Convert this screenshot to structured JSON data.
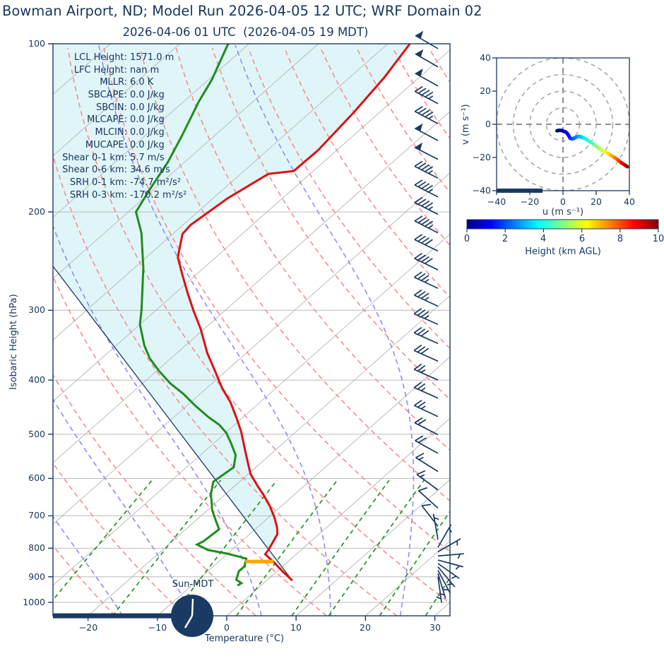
{
  "title": "Bowman Airport, ND; Model Run 2026-04-05 12 UTC; WRF Domain 02",
  "subtitle": "2026-04-06 01 UTC  (2026-04-05 19 MDT)",
  "colors": {
    "text_navy": "#16365c",
    "frame_navy": "#1b3a63",
    "temperature_red": "#dd1111",
    "dewpoint_green": "#1f8c1f",
    "parcel_navy": "#1f3864",
    "cape_shade_cyan": "#e0f5f8",
    "marker_orange": "#ffa500",
    "isotherm_gray": "#b5b5b5",
    "grid_gray": "#bbbbbb",
    "dry_adiabat_red": "#f29090",
    "moist_adiabat_blue": "#8d8df0",
    "mixing_line_green": "#2e962e",
    "hodo_ring_gray": "#a3a3a3"
  },
  "skewt": {
    "ylabel": "Isobaric Height (hPa)",
    "xlabel": "Temperature (°C)",
    "pressure_ticks": [
      100,
      200,
      300,
      400,
      500,
      600,
      700,
      800,
      900,
      1000
    ],
    "temp_ticks": [
      -20,
      -10,
      0,
      10,
      20,
      30
    ],
    "sun_label": "Sun-MDT",
    "info": [
      {
        "label": "LCL Height:",
        "value": "1571.0 m"
      },
      {
        "label": "LFC Height:",
        "value": "nan m"
      },
      {
        "label": "MLLR:",
        "value": "6.0 K"
      },
      {
        "label": "SBCAPE:",
        "value": "0.0 J/kg"
      },
      {
        "label": "SBCIN:",
        "value": "0.0 J/kg"
      },
      {
        "label": "MLCAPE:",
        "value": "0.0 J/kg"
      },
      {
        "label": "MLCIN:",
        "value": "0.0 J/kg"
      },
      {
        "label": "MUCAPE:",
        "value": "0.0 J/kg"
      },
      {
        "label": "Shear 0-1 km:",
        "value": "5.7 m/s"
      },
      {
        "label": "Shear 0-6 km:",
        "value": "34.6 m/s"
      },
      {
        "label": "SRH 0-1 km:",
        "value": "-74.7 m²/s²"
      },
      {
        "label": "SRH 0-3 km:",
        "value": "-170.2 m²/s²"
      }
    ]
  },
  "hodograph": {
    "xlabel": "u (m s⁻¹)",
    "ylabel": "v (m s⁻¹)",
    "u_ticks": [
      -40,
      -20,
      0,
      20,
      40
    ],
    "v_ticks": [
      40,
      20,
      0,
      -20,
      -40
    ],
    "ring_radii": [
      10,
      20,
      30,
      40
    ]
  },
  "colorbar": {
    "label": "Height (km AGL)",
    "ticks": [
      0,
      2,
      4,
      6,
      8,
      10
    ],
    "min": 0,
    "max": 10
  },
  "chart_data": {
    "type": "skewt-logp sounding",
    "pressure_range_hpa": [
      100,
      1050
    ],
    "temperature_axis_c": [
      -25,
      32
    ],
    "temperature_profile_p_t": [
      [
        100,
        -66.8
      ],
      [
        115,
        -65.0
      ],
      [
        133,
        -63.7
      ],
      [
        155,
        -62.7
      ],
      [
        169,
        -62.8
      ],
      [
        171,
        -66.0
      ],
      [
        189,
        -67.9
      ],
      [
        211,
        -68.9
      ],
      [
        219,
        -68.6
      ],
      [
        241,
        -65.5
      ],
      [
        259,
        -62.0
      ],
      [
        279,
        -58.3
      ],
      [
        300,
        -54.6
      ],
      [
        324,
        -50.5
      ],
      [
        358,
        -45.6
      ],
      [
        388,
        -41.2
      ],
      [
        414,
        -37.7
      ],
      [
        438,
        -34.3
      ],
      [
        467,
        -30.9
      ],
      [
        495,
        -27.9
      ],
      [
        530,
        -24.7
      ],
      [
        566,
        -21.6
      ],
      [
        590,
        -19.6
      ],
      [
        621,
        -16.5
      ],
      [
        640,
        -14.6
      ],
      [
        672,
        -11.7
      ],
      [
        704,
        -9.2
      ],
      [
        735,
        -7.1
      ],
      [
        755,
        -6.0
      ],
      [
        802,
        -4.8
      ],
      [
        820,
        -4.5
      ],
      [
        847,
        -2.0
      ],
      [
        880,
        0.8
      ],
      [
        914,
        3.7
      ]
    ],
    "dewpoint_profile_p_t": [
      [
        100,
        -93.0
      ],
      [
        116,
        -89.5
      ],
      [
        127,
        -87.8
      ],
      [
        146,
        -84.7
      ],
      [
        163,
        -82.4
      ],
      [
        182,
        -80.6
      ],
      [
        200,
        -78.9
      ],
      [
        218,
        -74.7
      ],
      [
        252,
        -68.7
      ],
      [
        299,
        -62.2
      ],
      [
        318,
        -60.0
      ],
      [
        347,
        -55.9
      ],
      [
        366,
        -53.0
      ],
      [
        385,
        -49.7
      ],
      [
        405,
        -46.1
      ],
      [
        423,
        -42.5
      ],
      [
        445,
        -38.7
      ],
      [
        466,
        -35.0
      ],
      [
        481,
        -32.2
      ],
      [
        497,
        -29.9
      ],
      [
        519,
        -27.5
      ],
      [
        545,
        -24.9
      ],
      [
        573,
        -23.2
      ],
      [
        608,
        -23.8
      ],
      [
        640,
        -22.1
      ],
      [
        684,
        -19.3
      ],
      [
        718,
        -16.8
      ],
      [
        740,
        -15.2
      ],
      [
        777,
        -15.5
      ],
      [
        788,
        -15.9
      ],
      [
        806,
        -13.4
      ],
      [
        818,
        -10.1
      ],
      [
        830,
        -7.5
      ],
      [
        835,
        -6.5
      ],
      [
        862,
        -5.5
      ],
      [
        880,
        -5.5
      ],
      [
        911,
        -4.5
      ],
      [
        924,
        -3.2
      ],
      [
        933,
        -3.4
      ]
    ],
    "parcel_path_p_t": [
      [
        250,
        -82.0
      ],
      [
        914,
        3.7
      ]
    ],
    "lcl_marker": {
      "pressure_hpa": 845,
      "t_left_c": -6.2,
      "t_right_c": -2.1,
      "color": "orange"
    },
    "winds_p_speedms_dirdeg": [
      [
        102,
        52,
        300
      ],
      [
        110,
        50,
        300
      ],
      [
        119,
        48,
        299
      ],
      [
        128,
        47,
        298
      ],
      [
        139,
        46,
        298
      ],
      [
        149,
        50,
        298
      ],
      [
        161,
        48,
        297
      ],
      [
        174,
        46,
        297
      ],
      [
        188,
        45,
        297
      ],
      [
        202,
        44,
        297
      ],
      [
        218,
        43,
        297
      ],
      [
        235,
        41,
        296
      ],
      [
        254,
        39,
        296
      ],
      [
        274,
        37,
        295
      ],
      [
        295,
        35,
        295
      ],
      [
        318,
        33,
        294
      ],
      [
        344,
        31,
        294
      ],
      [
        370,
        29,
        294
      ],
      [
        400,
        27,
        294
      ],
      [
        431,
        25,
        294
      ],
      [
        465,
        23,
        295
      ],
      [
        501,
        21,
        297
      ],
      [
        541,
        18,
        299
      ],
      [
        583,
        16,
        302
      ],
      [
        629,
        13,
        306
      ],
      [
        678,
        11,
        312
      ],
      [
        731,
        9,
        322
      ],
      [
        772,
        7,
        350
      ],
      [
        797,
        6,
        30
      ],
      [
        812,
        5,
        60
      ],
      [
        826,
        5,
        85
      ],
      [
        840,
        5,
        105
      ],
      [
        852,
        5,
        125
      ],
      [
        864,
        5,
        140
      ],
      [
        876,
        5,
        152
      ],
      [
        888,
        5,
        163
      ],
      [
        900,
        4,
        172
      ]
    ],
    "hodograph_trace_u_v_heightkm": [
      [
        -3.6,
        -3.9,
        0
      ],
      [
        -2.2,
        -3.6,
        0.15
      ],
      [
        -0.8,
        -3.7,
        0.3
      ],
      [
        0.3,
        -4.2,
        0.5
      ],
      [
        1.4,
        -4.5,
        0.7
      ],
      [
        2.4,
        -5.3,
        0.9
      ],
      [
        3.3,
        -6.6,
        1.2
      ],
      [
        4.2,
        -8.3,
        1.5
      ],
      [
        5.4,
        -8.8,
        1.8
      ],
      [
        6.6,
        -8.4,
        2.1
      ],
      [
        7.8,
        -7.8,
        2.4
      ],
      [
        9.2,
        -7.3,
        2.7
      ],
      [
        10.6,
        -7.5,
        3.0
      ],
      [
        12.2,
        -8.1,
        3.3
      ],
      [
        13.8,
        -8.9,
        3.7
      ],
      [
        15.2,
        -9.9,
        4.0
      ],
      [
        17.2,
        -11.1,
        4.4
      ],
      [
        19.2,
        -12.6,
        4.8
      ],
      [
        21.2,
        -14.1,
        5.2
      ],
      [
        23.2,
        -15.4,
        5.6
      ],
      [
        25.2,
        -16.6,
        6.0
      ],
      [
        27.2,
        -17.5,
        6.4
      ],
      [
        29.2,
        -18.9,
        6.9
      ],
      [
        31.2,
        -20.1,
        7.4
      ],
      [
        33.2,
        -21.6,
        7.9
      ],
      [
        35.0,
        -23.1,
        8.5
      ],
      [
        36.6,
        -24.1,
        9.0
      ],
      [
        38.0,
        -25.0,
        9.5
      ],
      [
        38.8,
        -25.6,
        10
      ]
    ],
    "hodograph_axis_range": [
      -40,
      40
    ],
    "colorbar_height_km": [
      0,
      10
    ],
    "mixing_ratio_lines_gkg": [
      0.4,
      1,
      2,
      4,
      7,
      10,
      16,
      24,
      32
    ],
    "isotherm_step_c": 10,
    "dry_adiabat_step_k": 10,
    "moist_adiabat_start_step_c": 10
  }
}
